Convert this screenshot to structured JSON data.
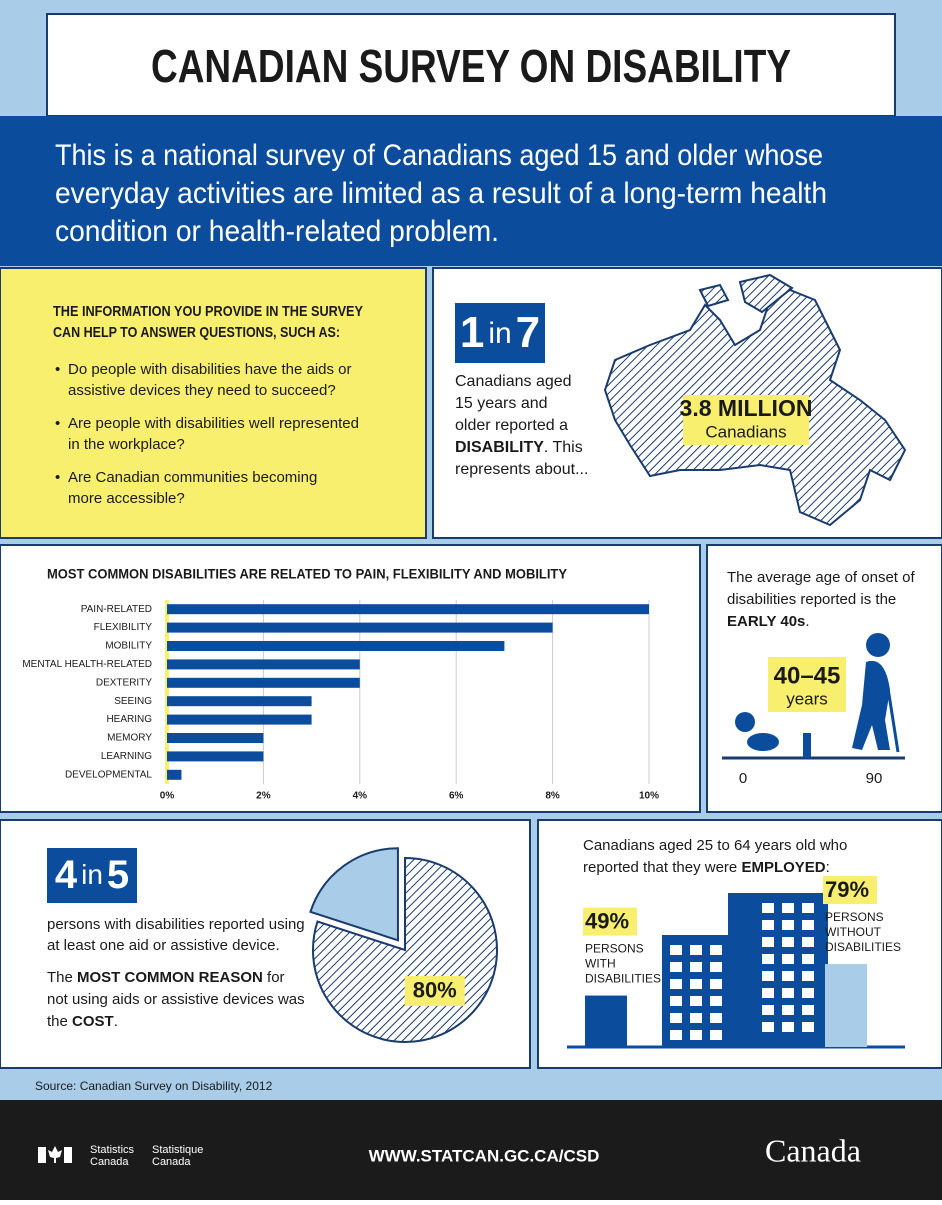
{
  "header": {
    "title": "CANADIAN SURVEY ON DISABILITY",
    "intro": [
      "This is a national survey of Canadians aged 15 and older whose",
      "everyday activities are limited as a result of a long-term health",
      "condition or health-related problem."
    ]
  },
  "questions": {
    "heading": [
      "THE INFORMATION YOU PROVIDE IN THE SURVEY",
      "CAN HELP TO ANSWER QUESTIONS, SUCH AS:"
    ],
    "items": [
      [
        "Do people with disabilities have the aids or",
        "assistive devices they need to succeed?"
      ],
      [
        "Are people with disabilities well represented",
        "in the workplace?"
      ],
      [
        "Are Canadian communities becoming",
        "more accessible?"
      ]
    ]
  },
  "prevalence": {
    "ratio": [
      "1",
      "in",
      "7"
    ],
    "lines": [
      [
        {
          "text": "Canadians aged"
        }
      ],
      [
        {
          "text": "15 years and"
        }
      ],
      [
        {
          "text": "older reported a"
        }
      ],
      [
        {
          "text": "DISABILITY",
          "bold": true
        },
        {
          "text": ". This"
        }
      ],
      [
        {
          "text": "represents about..."
        }
      ]
    ],
    "count": "3.8 MILLION",
    "count_unit": "Canadians"
  },
  "onset": {
    "lines": [
      [
        {
          "text": "The average age of onset of"
        }
      ],
      [
        {
          "text": "disabilities reported is the"
        }
      ],
      [
        {
          "text": "EARLY 40s",
          "bold": true
        },
        {
          "text": "."
        }
      ]
    ],
    "range": "40–45",
    "unit": "years",
    "scale_start": "0",
    "scale_end": "90"
  },
  "aids": {
    "ratio": [
      "4",
      "in",
      "5"
    ],
    "lines": [
      [
        {
          "text": "persons with disabilities reported using"
        }
      ],
      [
        {
          "text": "at least one aid or assistive device."
        }
      ]
    ],
    "reason": [
      [
        {
          "text": "The "
        },
        {
          "text": "MOST COMMON REASON",
          "bold": true
        },
        {
          "text": " for"
        }
      ],
      [
        {
          "text": "not using aids or assistive devices was"
        }
      ],
      [
        {
          "text": "the "
        },
        {
          "text": "COST",
          "bold": true
        },
        {
          "text": "."
        }
      ]
    ]
  },
  "employment": {
    "lines": [
      [
        {
          "text": "Canadians aged 25 to 64 years old who"
        }
      ],
      [
        {
          "text": "reported that they were "
        },
        {
          "text": "EMPLOYED",
          "bold": true
        },
        {
          "text": ":"
        }
      ]
    ]
  },
  "source": "Source: Canadian Survey on Disability, 2012",
  "footer": {
    "agency_en": [
      "Statistics",
      "Canada"
    ],
    "agency_fr": [
      "Statistique",
      "Canada"
    ],
    "url": "WWW.STATCAN.GC.CA/CSD",
    "wordmark": "Canada"
  },
  "chart_data": [
    {
      "type": "hbar",
      "title": "MOST COMMON DISABILITIES ARE RELATED TO PAIN, FLEXIBILITY AND MOBILITY",
      "categories": [
        "PAIN-RELATED",
        "FLEXIBILITY",
        "MOBILITY",
        "MENTAL HEALTH-RELATED",
        "DEXTERITY",
        "SEEING",
        "HEARING",
        "MEMORY",
        "LEARNING",
        "DEVELOPMENTAL"
      ],
      "values": [
        10,
        8,
        7,
        4,
        4,
        3,
        3,
        2,
        2,
        0.3
      ],
      "color": "#0b4d9c",
      "xlim": [
        0,
        10
      ],
      "xticks": [
        {
          "value": 0,
          "label": "0%"
        },
        {
          "value": 2,
          "label": "2%"
        },
        {
          "value": 4,
          "label": "4%"
        },
        {
          "value": 6,
          "label": "6%"
        },
        {
          "value": 8,
          "label": "8%"
        },
        {
          "value": 10,
          "label": "10%"
        }
      ],
      "grid": true
    },
    {
      "type": "pie",
      "values": [
        80,
        20
      ],
      "value_labels": [
        "80%",
        null
      ],
      "colors": [
        "hatch",
        "#a9cde9"
      ]
    },
    {
      "type": "vbar",
      "categories": [
        "PERSONS WITH DISABILITIES",
        "PERSONS WITHOUT DISABILITIES"
      ],
      "values": [
        49,
        79
      ],
      "value_labels": [
        "49%",
        "79%"
      ],
      "colors": [
        "#0b4d9c",
        "#a9cde9"
      ]
    }
  ]
}
